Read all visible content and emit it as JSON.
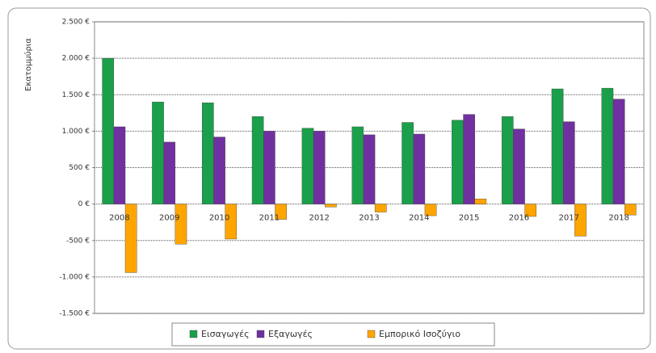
{
  "chart_data": {
    "type": "bar",
    "y_label": "Εκατομμύρια",
    "categories": [
      "2008",
      "2009",
      "2010",
      "2011",
      "2012",
      "2013",
      "2014",
      "2015",
      "2016",
      "2017",
      "2018"
    ],
    "series": [
      {
        "name": "Εισαγωγές",
        "color": "#1aa04a",
        "values": [
          2000,
          1400,
          1390,
          1200,
          1040,
          1060,
          1120,
          1150,
          1200,
          1580,
          1590
        ]
      },
      {
        "name": "Εξαγωγές",
        "color": "#7030a0",
        "values": [
          1060,
          850,
          920,
          1000,
          1000,
          950,
          960,
          1230,
          1030,
          1130,
          1440
        ]
      },
      {
        "name": "Εμπορικό Ισοζύγιο",
        "color": "#ffa500",
        "values": [
          -940,
          -550,
          -480,
          -210,
          -40,
          -110,
          -160,
          70,
          -170,
          -440,
          -150
        ]
      }
    ],
    "ylim": [
      -1500,
      2500
    ],
    "yticks": [
      {
        "value": -1500,
        "label": "-1.500 €"
      },
      {
        "value": -1000,
        "label": "-1.000 €"
      },
      {
        "value": -500,
        "label": "-500 €"
      },
      {
        "value": 0,
        "label": "0 €"
      },
      {
        "value": 500,
        "label": "500 €"
      },
      {
        "value": 1000,
        "label": "1.000 €"
      },
      {
        "value": 1500,
        "label": "1.500 €"
      },
      {
        "value": 2000,
        "label": "2.000 €"
      },
      {
        "value": 2500,
        "label": "2.500 €"
      }
    ],
    "grid": true,
    "legend": "bottom"
  }
}
